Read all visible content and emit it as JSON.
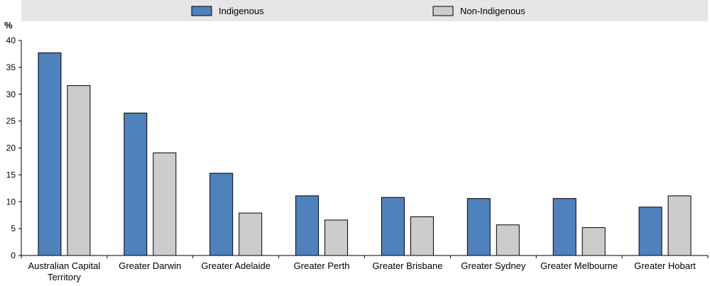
{
  "chart_data": {
    "type": "bar",
    "categories": [
      [
        "Australian Capital",
        "Territory"
      ],
      [
        "Greater Darwin"
      ],
      [
        "Greater Adelaide"
      ],
      [
        "Greater Perth"
      ],
      [
        "Greater Brisbane"
      ],
      [
        "Greater Sydney"
      ],
      [
        "Greater Melbourne"
      ],
      [
        "Greater Hobart"
      ]
    ],
    "series": [
      {
        "name": "Indigenous",
        "color": "#4f81bd",
        "values": [
          37.7,
          26.5,
          15.3,
          11.1,
          10.8,
          10.6,
          10.6,
          9.0
        ]
      },
      {
        "name": "Non-Indigenous",
        "color": "#cccccc",
        "values": [
          31.6,
          19.1,
          7.9,
          6.6,
          7.2,
          5.7,
          5.2,
          11.1
        ]
      }
    ],
    "ylabel": "%",
    "ylim": [
      0,
      40
    ],
    "yticks": [
      0,
      5,
      10,
      15,
      20,
      25,
      30,
      35,
      40
    ],
    "grid": false,
    "legend_position": "top"
  }
}
